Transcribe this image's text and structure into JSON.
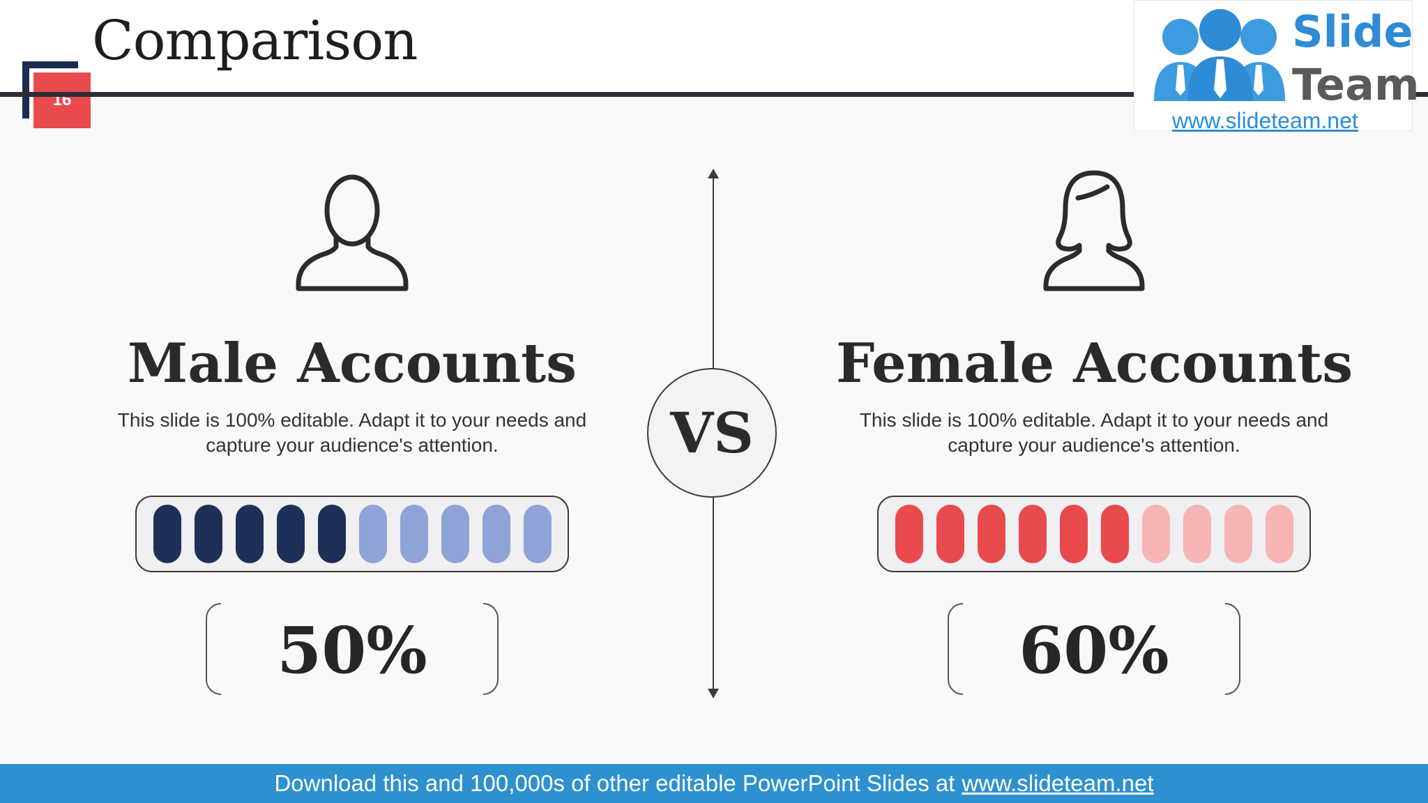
{
  "slide": {
    "title": "Comparison",
    "number": "16"
  },
  "logo": {
    "line1": "Slide",
    "line2": "Team",
    "url": "www.slideteam.net"
  },
  "vs_label": "VS",
  "panels": [
    {
      "icon": "male-user-icon",
      "title": "Male Accounts",
      "description": "This slide is 100% editable. Adapt it to your needs and capture your audience's attention.",
      "percent_label": "50%",
      "meter": {
        "filled": 5,
        "total": 10,
        "filled_color": "#1f3058",
        "empty_color": "#8fa3d6"
      }
    },
    {
      "icon": "female-user-icon",
      "title": "Female Accounts",
      "description": "This slide is 100% editable. Adapt it to your needs and capture your audience's attention.",
      "percent_label": "60%",
      "meter": {
        "filled": 6,
        "total": 10,
        "filled_color": "#e84a4e",
        "empty_color": "#f7b4b5"
      }
    }
  ],
  "footer": {
    "text": "Download this and 100,000s of other editable PowerPoint Slides at",
    "link": "www.slideteam.net"
  },
  "colors": {
    "navy": "#1c2b4f",
    "accent_red": "#e84a4e",
    "footer_blue": "#2e91cf"
  }
}
